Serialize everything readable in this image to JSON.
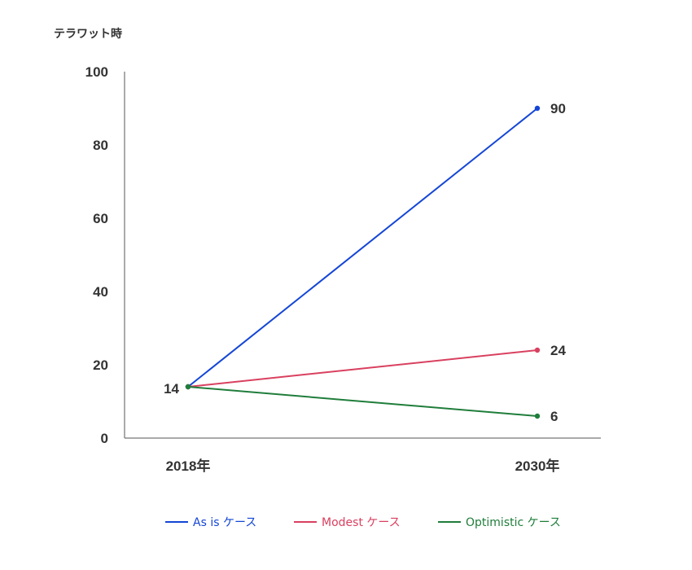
{
  "chart_data": {
    "type": "line",
    "ylabel": "テラワット時",
    "categories": [
      "2018年",
      "2030年"
    ],
    "ylim": [
      0,
      100
    ],
    "yticks": [
      0,
      20,
      40,
      60,
      80,
      100
    ],
    "grid": false,
    "legend_position": "bottom",
    "series": [
      {
        "name": "As is ケース",
        "color": "#1446d6",
        "values": [
          14,
          90
        ]
      },
      {
        "name": "Modest ケース",
        "color": "#d9405f",
        "values": [
          14,
          24
        ]
      },
      {
        "name": "Optimistic ケース",
        "color": "#1f7d3a",
        "values": [
          14,
          6
        ]
      }
    ],
    "start_label": "14",
    "end_labels": [
      "90",
      "24",
      "6"
    ]
  }
}
